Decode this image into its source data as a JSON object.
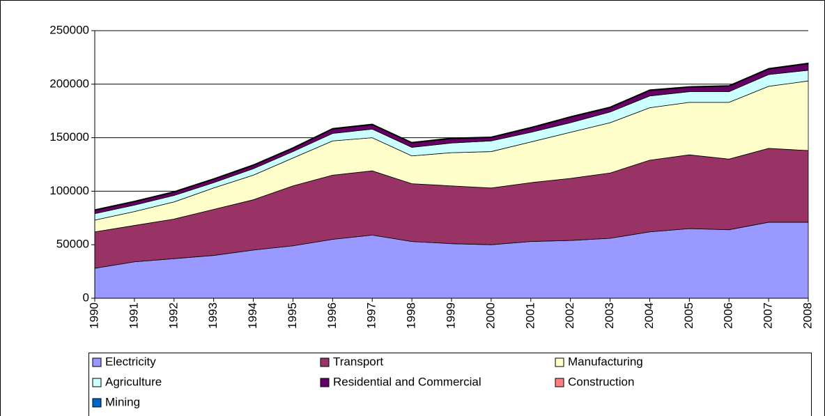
{
  "chart_data": {
    "type": "stacked-area",
    "categories": [
      "1990",
      "1991",
      "1992",
      "1993",
      "1994",
      "1995",
      "1996",
      "1997",
      "1998",
      "1999",
      "2000",
      "2001",
      "2002",
      "2003",
      "2004",
      "2005",
      "2006",
      "2007",
      "2008"
    ],
    "series": [
      {
        "name": "Electricity",
        "color": "#9999ff",
        "values": [
          28000,
          34000,
          37000,
          40000,
          45000,
          49000,
          55000,
          59000,
          53000,
          51000,
          50000,
          53000,
          54000,
          56000,
          62000,
          65000,
          64000,
          71000,
          71000
        ]
      },
      {
        "name": "Transport",
        "color": "#993366",
        "values": [
          34000,
          34000,
          37000,
          43000,
          47000,
          56000,
          60000,
          60000,
          54000,
          54000,
          53000,
          55000,
          58000,
          61000,
          67000,
          69000,
          66000,
          69000,
          67000
        ]
      },
      {
        "name": "Manufacturing",
        "color": "#ffffcc",
        "values": [
          11000,
          13000,
          16000,
          20000,
          23000,
          26000,
          32000,
          31000,
          26000,
          31000,
          34000,
          38000,
          43000,
          47000,
          49000,
          49000,
          53000,
          58000,
          65000
        ]
      },
      {
        "name": "Agriculture",
        "color": "#ccffff",
        "values": [
          6000,
          6000,
          6000,
          5000,
          6000,
          6000,
          7000,
          8000,
          8000,
          9000,
          10000,
          9000,
          9000,
          10000,
          11000,
          10000,
          10000,
          11000,
          10000
        ]
      },
      {
        "name": "Residential and Commercial",
        "color": "#660066",
        "values": [
          3000,
          3000,
          3000,
          3000,
          3000,
          3000,
          4000,
          4000,
          4000,
          4000,
          3000,
          4000,
          5000,
          4000,
          5000,
          4000,
          5000,
          5000,
          6000
        ]
      },
      {
        "name": "Construction",
        "color": "#ff8080",
        "values": [
          500,
          500,
          500,
          500,
          500,
          500,
          500,
          500,
          500,
          500,
          500,
          500,
          500,
          500,
          500,
          500,
          500,
          500,
          500
        ]
      },
      {
        "name": "Mining",
        "color": "#0066cc",
        "values": [
          300,
          300,
          300,
          300,
          300,
          300,
          300,
          300,
          300,
          300,
          300,
          300,
          300,
          300,
          300,
          300,
          300,
          300,
          300
        ]
      }
    ],
    "ylim": [
      0,
      250000
    ],
    "yticks": [
      0,
      50000,
      100000,
      150000,
      200000,
      250000
    ],
    "grid": true
  }
}
